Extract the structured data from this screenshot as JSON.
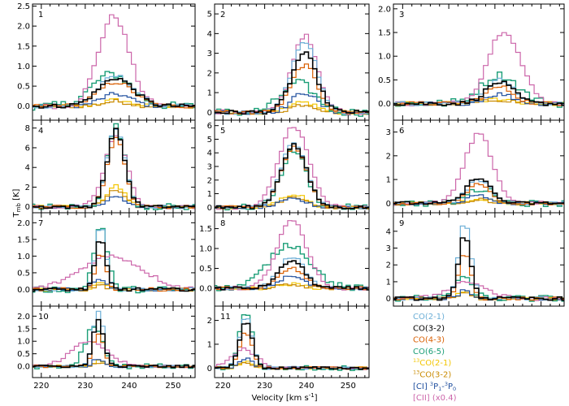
{
  "chart_data": {
    "type": "line",
    "step": true,
    "xlabel": "Velocity [km s",
    "xlabel_sup": "-1",
    "xlabel_end": "]",
    "ylabel": "T",
    "ylabel_sub": "mb",
    "ylabel_end": " [K]",
    "xlim": [
      218,
      255
    ],
    "xticks": [
      "220",
      "230",
      "240",
      "250"
    ],
    "x": [
      218,
      219,
      220,
      221,
      222,
      223,
      224,
      225,
      226,
      227,
      228,
      229,
      230,
      231,
      232,
      233,
      234,
      235,
      236,
      237,
      238,
      239,
      240,
      241,
      242,
      243,
      244,
      245,
      246,
      247,
      248,
      249,
      250,
      251,
      252,
      253,
      254,
      255
    ],
    "legend": [
      {
        "key": "co21",
        "text": "CO(2-1)",
        "color": "#6baed6"
      },
      {
        "key": "co32",
        "text": "CO(3-2)",
        "color": "#000000"
      },
      {
        "key": "co43",
        "text": "CO(4-3)",
        "color": "#d95f02"
      },
      {
        "key": "co65",
        "text": "CO(6-5)",
        "color": "#1b9e77"
      },
      {
        "key": "c13co21",
        "pre": "13",
        "text": "CO(2-1)",
        "color": "#f2c500"
      },
      {
        "key": "c13co32",
        "pre": "13",
        "text": "CO(3-2)",
        "color": "#c98a00"
      },
      {
        "key": "ci",
        "text": "[CI] ",
        "sup1": "3",
        "mid": "P",
        "sub1": "1",
        "dash": "-",
        "sup2": "3",
        "mid2": "P",
        "sub2": "0",
        "color": "#1f4e9e"
      },
      {
        "key": "cii",
        "text": "[CII] (x0.4)",
        "color": "#cc66aa"
      }
    ],
    "panels": [
      {
        "id": "1",
        "ylim": [
          -0.35,
          2.55
        ],
        "yticks": [
          "0.0",
          "0.5",
          "1.0",
          "1.5",
          "2.0",
          "2.5"
        ],
        "series": [
          {
            "name": "CII",
            "center": 236.5,
            "width": 3.5,
            "peak": 2.25
          },
          {
            "name": "CO(6-5)",
            "center": 236,
            "width": 4.5,
            "peak": 0.8
          },
          {
            "name": "CO(2-1)",
            "center": 237,
            "width": 4,
            "peak": 0.75
          },
          {
            "name": "CO(3-2)",
            "center": 237,
            "width": 4,
            "peak": 0.7
          },
          {
            "name": "CO(4-3)",
            "center": 237,
            "width": 4,
            "peak": 0.6
          },
          {
            "name": "13CO(2-1)",
            "center": 237,
            "width": 3,
            "peak": 0.15
          },
          {
            "name": "13CO(3-2)",
            "center": 237,
            "width": 3,
            "peak": 0.12
          },
          {
            "name": "CI",
            "center": 237,
            "width": 3.5,
            "peak": 0.3
          }
        ]
      },
      {
        "id": "2",
        "ylim": [
          -0.4,
          5.5
        ],
        "yticks": [
          "0",
          "1",
          "2",
          "3",
          "4",
          "5"
        ],
        "series": [
          {
            "name": "CII",
            "center": 239.5,
            "width": 3,
            "peak": 3.9
          },
          {
            "name": "CO(2-1)",
            "center": 239.5,
            "width": 3,
            "peak": 3.6
          },
          {
            "name": "CO(3-2)",
            "center": 239.5,
            "width": 3,
            "peak": 3.0
          },
          {
            "name": "CO(4-3)",
            "center": 239.5,
            "width": 3,
            "peak": 2.4
          },
          {
            "name": "CO(6-5)",
            "center": 238,
            "width": 4,
            "peak": 1.5
          },
          {
            "name": "13CO(2-1)",
            "center": 239.5,
            "width": 3,
            "peak": 0.5
          },
          {
            "name": "13CO(3-2)",
            "center": 239.5,
            "width": 3,
            "peak": 0.4
          },
          {
            "name": "CI",
            "center": 239.5,
            "width": 3,
            "peak": 1.0
          }
        ]
      },
      {
        "id": "3",
        "ylim": [
          -0.35,
          2.1
        ],
        "yticks": [
          "0.0",
          "0.5",
          "1.0",
          "1.5",
          "2.0"
        ],
        "series": [
          {
            "name": "CII",
            "center": 242,
            "width": 3.5,
            "peak": 1.55
          },
          {
            "name": "CO(6-5)",
            "center": 241,
            "width": 4,
            "peak": 0.6
          },
          {
            "name": "CO(2-1)",
            "center": 241,
            "width": 3,
            "peak": 0.5
          },
          {
            "name": "CO(3-2)",
            "center": 241,
            "width": 3,
            "peak": 0.45
          },
          {
            "name": "CO(4-3)",
            "center": 241,
            "width": 3,
            "peak": 0.35
          },
          {
            "name": "13CO(2-1)",
            "center": 241,
            "width": 3,
            "peak": 0.1
          },
          {
            "name": "13CO(3-2)",
            "center": 241,
            "width": 3,
            "peak": 0.08
          },
          {
            "name": "CI",
            "center": 241,
            "width": 3,
            "peak": 0.2
          }
        ]
      },
      {
        "id": "4",
        "ylim": [
          -0.6,
          8.8
        ],
        "yticks": [
          "0",
          "2",
          "4",
          "6",
          "8"
        ],
        "series": [
          {
            "name": "CO(6-5)",
            "center": 237,
            "width": 2,
            "peak": 8.2
          },
          {
            "name": "CO(2-1)",
            "center": 237,
            "width": 2,
            "peak": 8.0
          },
          {
            "name": "CO(3-2)",
            "center": 237,
            "width": 2,
            "peak": 7.8
          },
          {
            "name": "CII",
            "center": 237,
            "width": 2.5,
            "peak": 7.2
          },
          {
            "name": "CO(4-3)",
            "center": 237,
            "width": 2,
            "peak": 7.0
          },
          {
            "name": "13CO(2-1)",
            "center": 237,
            "width": 2,
            "peak": 2.2
          },
          {
            "name": "13CO(3-2)",
            "center": 237,
            "width": 2,
            "peak": 1.8
          },
          {
            "name": "CI",
            "center": 237,
            "width": 2,
            "peak": 1.0
          }
        ]
      },
      {
        "id": "5",
        "ylim": [
          -0.4,
          6.4
        ],
        "yticks": [
          "0",
          "1",
          "2",
          "3",
          "4",
          "5",
          "6"
        ],
        "series": [
          {
            "name": "CII",
            "center": 237,
            "width": 3.5,
            "peak": 6.0
          },
          {
            "name": "CO(2-1)",
            "center": 237,
            "width": 3,
            "peak": 4.8
          },
          {
            "name": "CO(3-2)",
            "center": 237,
            "width": 3,
            "peak": 4.6
          },
          {
            "name": "CO(4-3)",
            "center": 237,
            "width": 3,
            "peak": 4.4
          },
          {
            "name": "CO(6-5)",
            "center": 237,
            "width": 3,
            "peak": 4.2
          },
          {
            "name": "13CO(2-1)",
            "center": 237,
            "width": 3,
            "peak": 1.0
          },
          {
            "name": "13CO(3-2)",
            "center": 237,
            "width": 3,
            "peak": 0.8
          },
          {
            "name": "CI",
            "center": 237,
            "width": 3,
            "peak": 0.6
          }
        ]
      },
      {
        "id": "6",
        "ylim": [
          -0.4,
          3.5
        ],
        "yticks": [
          "0",
          "1",
          "2",
          "3"
        ],
        "series": [
          {
            "name": "CII",
            "center": 236.5,
            "width": 3,
            "peak": 2.9
          },
          {
            "name": "CO(3-2)",
            "center": 236.5,
            "width": 2.5,
            "peak": 1.1
          },
          {
            "name": "CO(2-1)",
            "center": 236.5,
            "width": 2.5,
            "peak": 1.0
          },
          {
            "name": "CO(4-3)",
            "center": 236.5,
            "width": 2.5,
            "peak": 0.8
          },
          {
            "name": "CO(6-5)",
            "center": 237,
            "width": 3,
            "peak": 0.6
          },
          {
            "name": "13CO(2-1)",
            "center": 236.5,
            "width": 2.5,
            "peak": 0.2
          },
          {
            "name": "13CO(3-2)",
            "center": 236.5,
            "width": 2.5,
            "peak": 0.15
          },
          {
            "name": "CI",
            "center": 236.5,
            "width": 2.5,
            "peak": 0.3
          }
        ]
      },
      {
        "id": "7",
        "ylim": [
          -0.5,
          2.3
        ],
        "yticks": [
          "0.0",
          "0.5",
          "1.0",
          "1.5",
          "2.0"
        ],
        "series": [
          {
            "name": "CO(2-1)",
            "center": 233.5,
            "width": 1.2,
            "peak": 1.9
          },
          {
            "name": "CO(3-2)",
            "center": 233.5,
            "width": 1.2,
            "peak": 1.5
          },
          {
            "name": "CO(6-5)",
            "center": 233.5,
            "width": 1.5,
            "peak": 1.9
          },
          {
            "name": "CII",
            "center": 236,
            "width": 7,
            "peak": 1.0
          },
          {
            "name": "CO(4-3)",
            "center": 233.5,
            "width": 1.2,
            "peak": 1.1
          },
          {
            "name": "13CO(2-1)",
            "center": 233.5,
            "width": 1.2,
            "peak": 0.2
          },
          {
            "name": "13CO(3-2)",
            "center": 233.5,
            "width": 1.2,
            "peak": 0.15
          },
          {
            "name": "CI",
            "center": 233.5,
            "width": 1.5,
            "peak": 0.3
          }
        ]
      },
      {
        "id": "8",
        "ylim": [
          -0.45,
          1.9
        ],
        "yticks": [
          "0.0",
          "0.5",
          "1.0",
          "1.5"
        ],
        "series": [
          {
            "name": "CII",
            "center": 236.5,
            "width": 3.5,
            "peak": 1.7
          },
          {
            "name": "CO(6-5)",
            "center": 236,
            "width": 5,
            "peak": 1.1
          },
          {
            "name": "CO(2-1)",
            "center": 236.5,
            "width": 3,
            "peak": 0.8
          },
          {
            "name": "CO(3-2)",
            "center": 236.5,
            "width": 3,
            "peak": 0.7
          },
          {
            "name": "CO(4-3)",
            "center": 236.5,
            "width": 3,
            "peak": 0.5
          },
          {
            "name": "13CO(2-1)",
            "center": 236.5,
            "width": 3,
            "peak": 0.1
          },
          {
            "name": "13CO(3-2)",
            "center": 236.5,
            "width": 3,
            "peak": 0.08
          },
          {
            "name": "CI",
            "center": 236.5,
            "width": 3,
            "peak": 0.3
          }
        ]
      },
      {
        "id": "9",
        "ylim": [
          -0.45,
          5.1
        ],
        "yticks": [
          "0",
          "1",
          "2",
          "3",
          "4"
        ],
        "series": [
          {
            "name": "CO(2-1)",
            "center": 233.5,
            "width": 1.3,
            "peak": 4.6
          },
          {
            "name": "CO(3-2)",
            "center": 233.5,
            "width": 1.3,
            "peak": 3.8
          },
          {
            "name": "CO(4-3)",
            "center": 233.5,
            "width": 1.3,
            "peak": 2.7
          },
          {
            "name": "CO(6-5)",
            "center": 233,
            "width": 2,
            "peak": 1.2
          },
          {
            "name": "CII",
            "center": 234,
            "width": 4,
            "peak": 1.0
          },
          {
            "name": "13CO(2-1)",
            "center": 233.5,
            "width": 1.3,
            "peak": 0.4
          },
          {
            "name": "13CO(3-2)",
            "center": 233.5,
            "width": 1.3,
            "peak": 0.3
          },
          {
            "name": "CI",
            "center": 233.5,
            "width": 1.3,
            "peak": 0.5
          }
        ]
      },
      {
        "id": "10",
        "ylim": [
          -0.45,
          2.4
        ],
        "yticks": [
          "0.0",
          "0.5",
          "1.0",
          "1.5",
          "2.0"
        ],
        "series": [
          {
            "name": "CO(2-1)",
            "center": 233,
            "width": 1.2,
            "peak": 2.2
          },
          {
            "name": "CO(3-2)",
            "center": 233,
            "width": 1.2,
            "peak": 1.9
          },
          {
            "name": "CO(4-3)",
            "center": 233,
            "width": 1.2,
            "peak": 1.3
          },
          {
            "name": "CO(6-5)",
            "center": 232,
            "width": 2,
            "peak": 1.6
          },
          {
            "name": "CII",
            "center": 231,
            "width": 4,
            "peak": 1.0
          },
          {
            "name": "13CO(2-1)",
            "center": 233,
            "width": 1.2,
            "peak": 0.2
          },
          {
            "name": "13CO(3-2)",
            "center": 233,
            "width": 1.2,
            "peak": 0.15
          },
          {
            "name": "CI",
            "center": 233,
            "width": 1.2,
            "peak": 0.3
          }
        ]
      },
      {
        "id": "11",
        "ylim": [
          -0.4,
          2.6
        ],
        "yticks": [
          "0",
          "1",
          "2"
        ],
        "series": [
          {
            "name": "CO(6-5)",
            "center": 225.5,
            "width": 1.5,
            "peak": 2.4
          },
          {
            "name": "CO(2-1)",
            "center": 225.5,
            "width": 1.5,
            "peak": 2.2
          },
          {
            "name": "CO(3-2)",
            "center": 225.5,
            "width": 1.5,
            "peak": 2.0
          },
          {
            "name": "CO(4-3)",
            "center": 225.5,
            "width": 1.5,
            "peak": 1.5
          },
          {
            "name": "CII",
            "center": 225,
            "width": 3,
            "peak": 0.8
          },
          {
            "name": "13CO(2-1)",
            "center": 225.5,
            "width": 1.5,
            "peak": 0.3
          },
          {
            "name": "13CO(3-2)",
            "center": 225.5,
            "width": 1.5,
            "peak": 0.25
          },
          {
            "name": "CI",
            "center": 225.5,
            "width": 1.5,
            "peak": 0.4
          }
        ]
      }
    ]
  }
}
